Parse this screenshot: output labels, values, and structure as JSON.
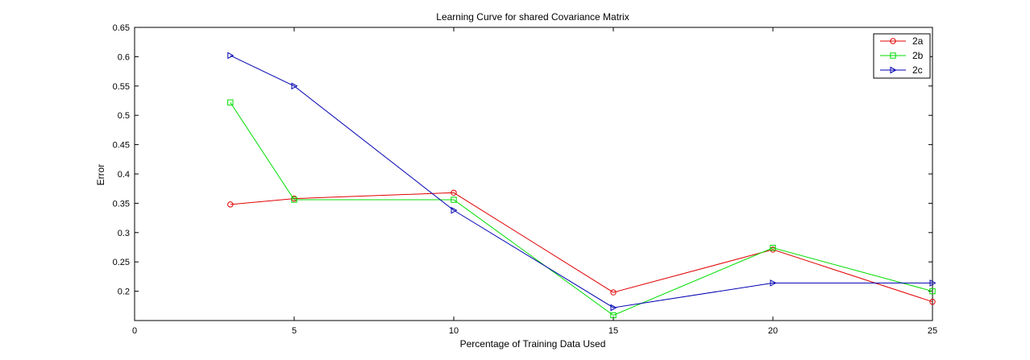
{
  "chart_data": {
    "type": "line",
    "title": "Learning Curve for shared Covariance Matrix",
    "xlabel": "Percentage of Training Data Used",
    "ylabel": "Error",
    "xlim": [
      0,
      25
    ],
    "ylim": [
      0.15,
      0.65
    ],
    "xticks": [
      0,
      5,
      10,
      15,
      20,
      25
    ],
    "xtick_labels": [
      "0",
      "5",
      "10",
      "15",
      "20",
      "25"
    ],
    "yticks": [
      0.2,
      0.25,
      0.3,
      0.35,
      0.4,
      0.45,
      0.5,
      0.55,
      0.6,
      0.65
    ],
    "ytick_labels": [
      "0.2",
      "0.25",
      "0.3",
      "0.35",
      "0.4",
      "0.45",
      "0.5",
      "0.55",
      "0.6",
      "0.65"
    ],
    "grid": false,
    "legend_position": "top-right",
    "x": [
      3,
      5,
      10,
      15,
      20,
      25
    ],
    "series": [
      {
        "name": "2a",
        "color": "#e00000",
        "marker": "circle",
        "values": [
          0.348,
          0.358,
          0.368,
          0.198,
          0.271,
          0.182
        ]
      },
      {
        "name": "2b",
        "color": "#00dd00",
        "marker": "square",
        "values": [
          0.522,
          0.356,
          0.356,
          0.159,
          0.274,
          0.2
        ]
      },
      {
        "name": "2c",
        "color": "#0000b0",
        "marker": "triangle-right",
        "values": [
          0.602,
          0.55,
          0.338,
          0.172,
          0.214,
          0.214
        ]
      }
    ]
  }
}
